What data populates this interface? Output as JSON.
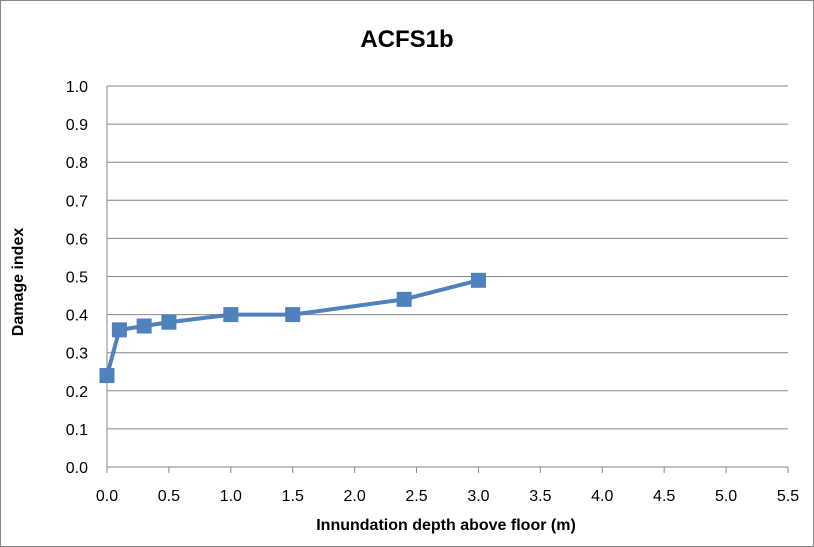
{
  "chart_data": {
    "type": "line",
    "title": "ACFS1b",
    "xlabel": "Innundation depth above floor (m)",
    "ylabel": "Damage index",
    "xlim": [
      0,
      5.5
    ],
    "ylim": [
      0,
      1.0
    ],
    "x_ticks": [
      "0.0",
      "0.5",
      "1.0",
      "1.5",
      "2.0",
      "2.5",
      "3.0",
      "3.5",
      "4.0",
      "4.5",
      "5.0",
      "5.5"
    ],
    "y_ticks": [
      "0.0",
      "0.1",
      "0.2",
      "0.3",
      "0.4",
      "0.5",
      "0.6",
      "0.7",
      "0.8",
      "0.9",
      "1.0"
    ],
    "grid": true,
    "legend": "none",
    "series": [
      {
        "color": "#4f81bd",
        "marker": "square",
        "x": [
          0,
          0.1,
          0.3,
          0.5,
          1.0,
          1.5,
          2.4,
          3.0
        ],
        "y": [
          0.24,
          0.36,
          0.37,
          0.38,
          0.4,
          0.4,
          0.44,
          0.49
        ]
      }
    ]
  }
}
